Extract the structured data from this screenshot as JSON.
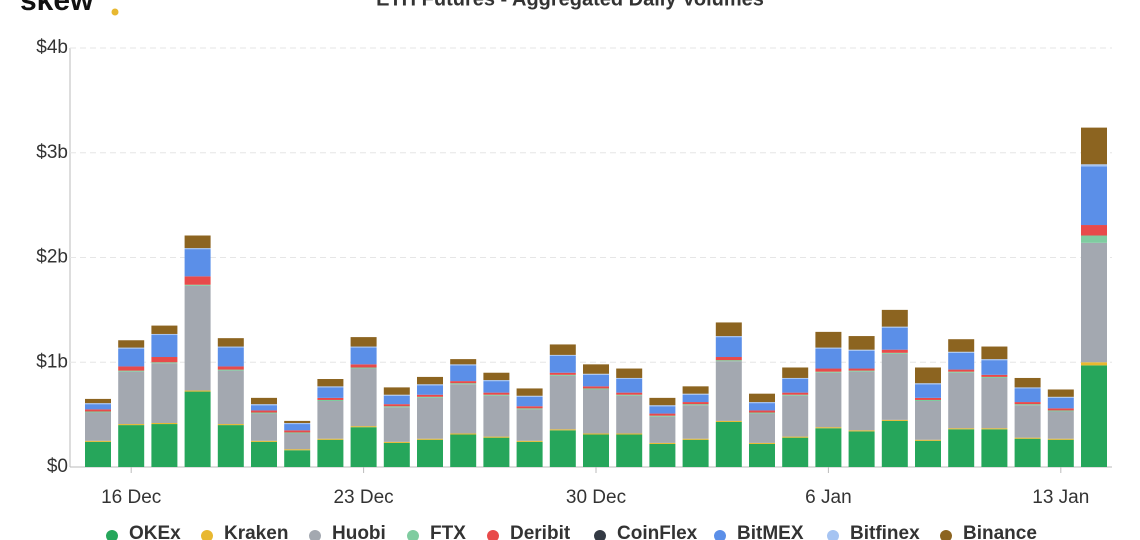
{
  "logo": "skew",
  "chart_data": {
    "type": "stacked_bar",
    "title": "ETH Futures - Aggregated Daily Volumes",
    "categories": [
      null,
      "16 Dec",
      null,
      null,
      null,
      null,
      null,
      null,
      "23 Dec",
      null,
      null,
      null,
      null,
      null,
      null,
      "30 Dec",
      null,
      null,
      null,
      null,
      null,
      null,
      "6 Jan",
      null,
      null,
      null,
      null,
      null,
      null,
      "13 Jan",
      null
    ],
    "ylim": [
      0,
      4
    ],
    "yticks": [
      {
        "value": 0,
        "label": "$0"
      },
      {
        "value": 1,
        "label": "$1b"
      },
      {
        "value": 2,
        "label": "$2b"
      },
      {
        "value": 3,
        "label": "$3b"
      },
      {
        "value": 4,
        "label": "$4b"
      }
    ],
    "grid": true,
    "legend": "bottom",
    "series": [
      {
        "name": "OKEx",
        "color": "#26a65b",
        "values": [
          0.24,
          0.4,
          0.41,
          0.72,
          0.4,
          0.24,
          0.16,
          0.26,
          0.38,
          0.23,
          0.26,
          0.31,
          0.28,
          0.24,
          0.35,
          0.31,
          0.31,
          0.22,
          0.26,
          0.43,
          0.22,
          0.28,
          0.37,
          0.34,
          0.44,
          0.25,
          0.36,
          0.36,
          0.27,
          0.26,
          0.97
        ]
      },
      {
        "name": "Kraken",
        "color": "#e8b830",
        "values": [
          0.01,
          0.01,
          0.01,
          0.01,
          0.01,
          0.01,
          0.01,
          0.01,
          0.01,
          0.01,
          0.01,
          0.01,
          0.01,
          0.01,
          0.01,
          0.01,
          0.01,
          0.01,
          0.01,
          0.01,
          0.01,
          0.01,
          0.01,
          0.01,
          0.01,
          0.01,
          0.01,
          0.01,
          0.01,
          0.01,
          0.03
        ]
      },
      {
        "name": "Huobi",
        "color": "#a3a8b0",
        "values": [
          0.27,
          0.5,
          0.57,
          1.0,
          0.51,
          0.26,
          0.15,
          0.36,
          0.55,
          0.33,
          0.39,
          0.47,
          0.39,
          0.3,
          0.51,
          0.42,
          0.36,
          0.25,
          0.32,
          0.57,
          0.28,
          0.39,
          0.52,
          0.56,
          0.63,
          0.37,
          0.53,
          0.48,
          0.31,
          0.26,
          1.14
        ]
      },
      {
        "name": "FTX",
        "color": "#7fcca0",
        "values": [
          0.01,
          0.01,
          0.01,
          0.01,
          0.01,
          0.01,
          0.01,
          0.01,
          0.01,
          0.01,
          0.01,
          0.01,
          0.01,
          0.01,
          0.01,
          0.01,
          0.01,
          0.01,
          0.01,
          0.01,
          0.01,
          0.01,
          0.01,
          0.01,
          0.01,
          0.01,
          0.01,
          0.01,
          0.01,
          0.01,
          0.07
        ]
      },
      {
        "name": "Deribit",
        "color": "#e84a4a",
        "values": [
          0.02,
          0.04,
          0.05,
          0.08,
          0.03,
          0.02,
          0.02,
          0.02,
          0.03,
          0.02,
          0.02,
          0.02,
          0.02,
          0.02,
          0.02,
          0.02,
          0.02,
          0.02,
          0.02,
          0.03,
          0.02,
          0.02,
          0.03,
          0.02,
          0.03,
          0.02,
          0.02,
          0.02,
          0.02,
          0.02,
          0.1
        ]
      },
      {
        "name": "CoinFlex",
        "color": "#333a44",
        "values": [
          0,
          0,
          0,
          0,
          0,
          0,
          0,
          0,
          0,
          0,
          0,
          0,
          0,
          0,
          0,
          0,
          0,
          0,
          0,
          0,
          0,
          0,
          0,
          0,
          0,
          0,
          0,
          0,
          0,
          0,
          0
        ]
      },
      {
        "name": "BitMEX",
        "color": "#5b8fe8",
        "values": [
          0.05,
          0.17,
          0.21,
          0.26,
          0.18,
          0.05,
          0.06,
          0.1,
          0.16,
          0.08,
          0.09,
          0.15,
          0.11,
          0.09,
          0.16,
          0.11,
          0.13,
          0.07,
          0.07,
          0.19,
          0.07,
          0.13,
          0.19,
          0.17,
          0.21,
          0.13,
          0.16,
          0.14,
          0.13,
          0.1,
          0.56
        ]
      },
      {
        "name": "Bitfinex",
        "color": "#a6c4f2",
        "values": [
          0.01,
          0.01,
          0.01,
          0.01,
          0.01,
          0.01,
          0.01,
          0.01,
          0.01,
          0.01,
          0.01,
          0.01,
          0.01,
          0.01,
          0.01,
          0.01,
          0.01,
          0.01,
          0.01,
          0.01,
          0.01,
          0.01,
          0.01,
          0.01,
          0.01,
          0.01,
          0.01,
          0.01,
          0.01,
          0.01,
          0.02
        ]
      },
      {
        "name": "Binance",
        "color": "#8c6420",
        "values": [
          0.04,
          0.07,
          0.08,
          0.12,
          0.08,
          0.06,
          0.02,
          0.07,
          0.09,
          0.07,
          0.07,
          0.05,
          0.07,
          0.07,
          0.1,
          0.09,
          0.09,
          0.07,
          0.07,
          0.13,
          0.08,
          0.1,
          0.15,
          0.13,
          0.16,
          0.15,
          0.12,
          0.12,
          0.09,
          0.07,
          0.35
        ]
      }
    ]
  }
}
